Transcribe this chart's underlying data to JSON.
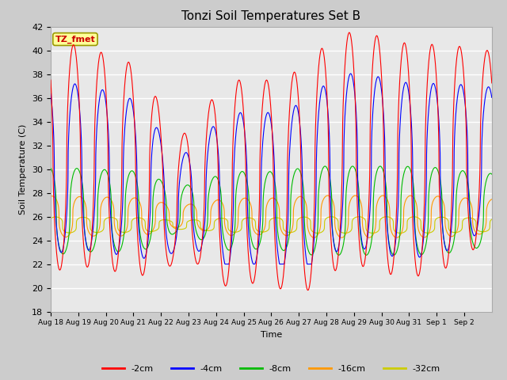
{
  "title": "Tonzi Soil Temperatures Set B",
  "xlabel": "Time",
  "ylabel": "Soil Temperature (C)",
  "ylim": [
    18,
    42
  ],
  "yticks": [
    18,
    20,
    22,
    24,
    26,
    28,
    30,
    32,
    34,
    36,
    38,
    40,
    42
  ],
  "n_days": 16,
  "colors": {
    "-2cm": "#ff0000",
    "-4cm": "#0000ff",
    "-8cm": "#00bb00",
    "-16cm": "#ff9900",
    "-32cm": "#cccc00"
  },
  "tick_labels": [
    "Aug 18",
    "Aug 19",
    "Aug 20",
    "Aug 21",
    "Aug 22",
    "Aug 23",
    "Aug 24",
    "Aug 25",
    "Aug 26",
    "Aug 27",
    "Aug 28",
    "Aug 29",
    "Aug 30",
    "Aug 31",
    "Sep 1",
    "Sep 2"
  ],
  "annotation_text": "TZ_fmet",
  "annotation_bg": "#ffff99",
  "annotation_fg": "#cc0000",
  "background_color": "#e8e8e8",
  "fig_bg": "#cccccc",
  "grid_color": "#ffffff"
}
